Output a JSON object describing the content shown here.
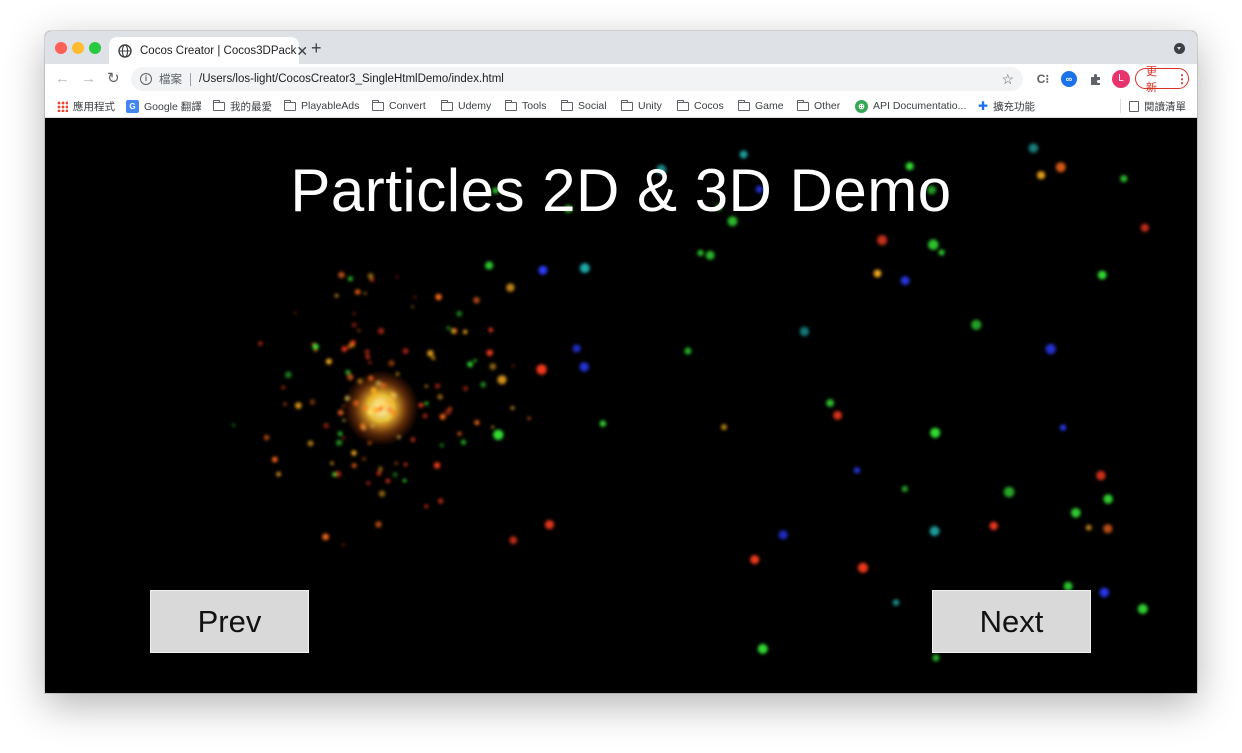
{
  "browser": {
    "tab": {
      "title": "Cocos Creator | Cocos3DPack",
      "favicon": "globe-icon"
    },
    "omnibox": {
      "scheme_label": "檔案",
      "url": "/Users/los-light/CocosCreator3_SingleHtmlDemo/index.html"
    },
    "profile_initial": "L",
    "update_label": "更新",
    "bookmarks": [
      {
        "label": "應用程式",
        "icon": "apps-grid-icon"
      },
      {
        "label": "Google 翻譯",
        "icon": "google-translate-icon"
      },
      {
        "label": "我的最愛",
        "icon": "folder-icon"
      },
      {
        "label": "PlayableAds",
        "icon": "folder-icon"
      },
      {
        "label": "Convert",
        "icon": "folder-icon"
      },
      {
        "label": "Udemy",
        "icon": "folder-icon"
      },
      {
        "label": "Tools",
        "icon": "folder-icon"
      },
      {
        "label": "Social",
        "icon": "folder-icon"
      },
      {
        "label": "Unity",
        "icon": "folder-icon"
      },
      {
        "label": "Cocos",
        "icon": "folder-icon"
      },
      {
        "label": "Game",
        "icon": "folder-icon"
      },
      {
        "label": "Other",
        "icon": "folder-icon"
      },
      {
        "label": "API Documentatio...",
        "icon": "api-doc-icon"
      },
      {
        "label": "擴充功能",
        "icon": "extension-icon"
      }
    ],
    "reading_list_label": "閱讀清單"
  },
  "game": {
    "title": "Particles 2D & 3D Demo",
    "prev_label": "Prev",
    "next_label": "Next",
    "background_color": "#000000",
    "particle_colors": [
      "#ff3b1f",
      "#ffb020",
      "#ffe066",
      "#33e033",
      "#2a3bff",
      "#1fa6a6",
      "#ff6a1a"
    ]
  }
}
